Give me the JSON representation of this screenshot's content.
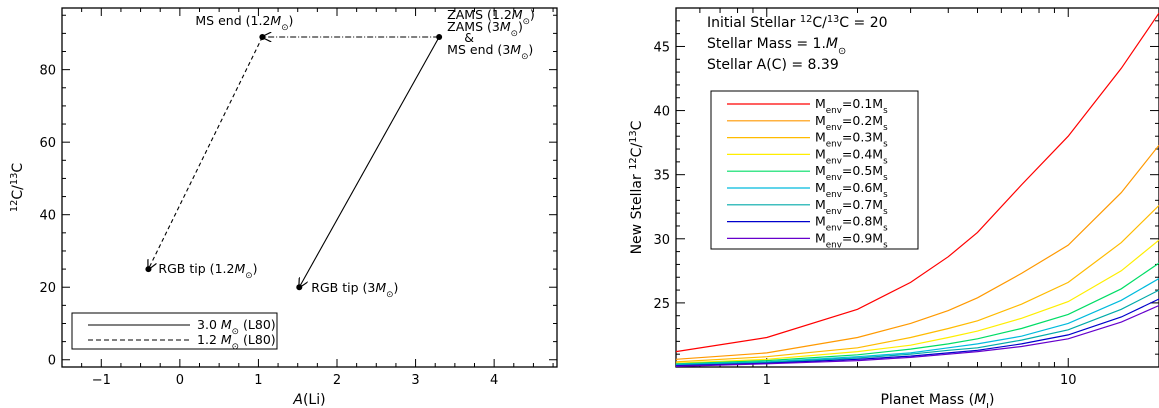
{
  "chart_data": [
    {
      "type": "line",
      "xlabel": "A(Li)",
      "ylabel": "12C/13C",
      "xlim": [
        -1.5,
        4.8
      ],
      "ylim": [
        -2,
        97
      ],
      "x_ticks": [
        -1,
        0,
        1,
        2,
        3,
        4
      ],
      "y_ticks": [
        0,
        20,
        40,
        60,
        80
      ],
      "grid": false,
      "legend_position": "bottom-left",
      "series": [
        {
          "name": "3.0 M⊙ (L80)",
          "style": "solid",
          "x": [
            3.3,
            1.52
          ],
          "y": [
            89,
            20
          ]
        },
        {
          "name": "1.2 M⊙ (L80)",
          "style": "dashed",
          "x": [
            3.3,
            1.05,
            -0.4
          ],
          "y": [
            89,
            89,
            25
          ]
        }
      ],
      "annotations": [
        {
          "text": "MS end (1.2M⊙)",
          "x": 1.05,
          "y": 89
        },
        {
          "text": "ZAMS (1.2M⊙)",
          "x": 3.3,
          "y": 89
        },
        {
          "text": "ZAMS (3M⊙)",
          "x": 3.3,
          "y": 89
        },
        {
          "text": "&",
          "x": 3.3,
          "y": 89
        },
        {
          "text": "MS end (3M⊙)",
          "x": 3.3,
          "y": 89
        },
        {
          "text": "RGB tip (1.2M⊙)",
          "x": -0.4,
          "y": 25
        },
        {
          "text": "RGB tip (3M⊙)",
          "x": 1.52,
          "y": 20
        }
      ]
    },
    {
      "type": "line",
      "xlabel": "Planet Mass (MJ)",
      "ylabel": "New Stellar 12C/13C",
      "xscale": "log",
      "xlim": [
        0.5,
        20
      ],
      "ylim": [
        20,
        48
      ],
      "x_ticks": [
        1,
        10
      ],
      "y_ticks": [
        25,
        30,
        35,
        40,
        45
      ],
      "grid": false,
      "legend_position": "upper-left",
      "header": [
        "Initial Stellar 12C/13C = 20",
        "Stellar Mass = 1.M⊙",
        "Stellar A(C) = 8.39"
      ],
      "x": [
        0.5,
        1,
        2,
        3,
        4,
        5,
        7,
        10,
        15,
        20
      ],
      "series": [
        {
          "name": "Menv=0.1Ms",
          "color": "#ff0000",
          "values": [
            21.2,
            22.3,
            24.5,
            26.6,
            28.6,
            30.5,
            34.2,
            38.0,
            43.3,
            47.6
          ]
        },
        {
          "name": "Menv=0.2Ms",
          "color": "#ff9900",
          "values": [
            20.6,
            21.1,
            22.3,
            23.4,
            24.4,
            25.4,
            27.3,
            29.5,
            33.6,
            37.3
          ]
        },
        {
          "name": "Menv=0.3Ms",
          "color": "#ffbb00",
          "values": [
            20.4,
            20.8,
            21.5,
            22.3,
            23.0,
            23.6,
            24.9,
            26.6,
            29.7,
            32.6
          ]
        },
        {
          "name": "Menv=0.4Ms",
          "color": "#ffee00",
          "values": [
            20.3,
            20.6,
            21.2,
            21.7,
            22.3,
            22.8,
            23.8,
            25.1,
            27.5,
            29.9
          ]
        },
        {
          "name": "Menv=0.5Ms",
          "color": "#00dd66",
          "values": [
            20.25,
            20.5,
            20.95,
            21.4,
            21.8,
            22.2,
            23.0,
            24.1,
            26.1,
            28.1
          ]
        },
        {
          "name": "Menv=0.6Ms",
          "color": "#00bbdd",
          "values": [
            20.2,
            20.4,
            20.8,
            21.1,
            21.5,
            21.8,
            22.4,
            23.4,
            25.2,
            26.9
          ]
        },
        {
          "name": "Menv=0.7Ms",
          "color": "#00aaaa",
          "values": [
            20.15,
            20.35,
            20.7,
            21.0,
            21.3,
            21.5,
            22.1,
            22.9,
            24.5,
            26.0
          ]
        },
        {
          "name": "Menv=0.8Ms",
          "color": "#0000cc",
          "values": [
            20.1,
            20.3,
            20.6,
            20.85,
            21.1,
            21.3,
            21.8,
            22.5,
            23.9,
            25.3
          ]
        },
        {
          "name": "Menv=0.9Ms",
          "color": "#6600cc",
          "values": [
            20.05,
            20.25,
            20.5,
            20.75,
            21.0,
            21.2,
            21.6,
            22.2,
            23.5,
            24.8
          ]
        }
      ]
    }
  ]
}
